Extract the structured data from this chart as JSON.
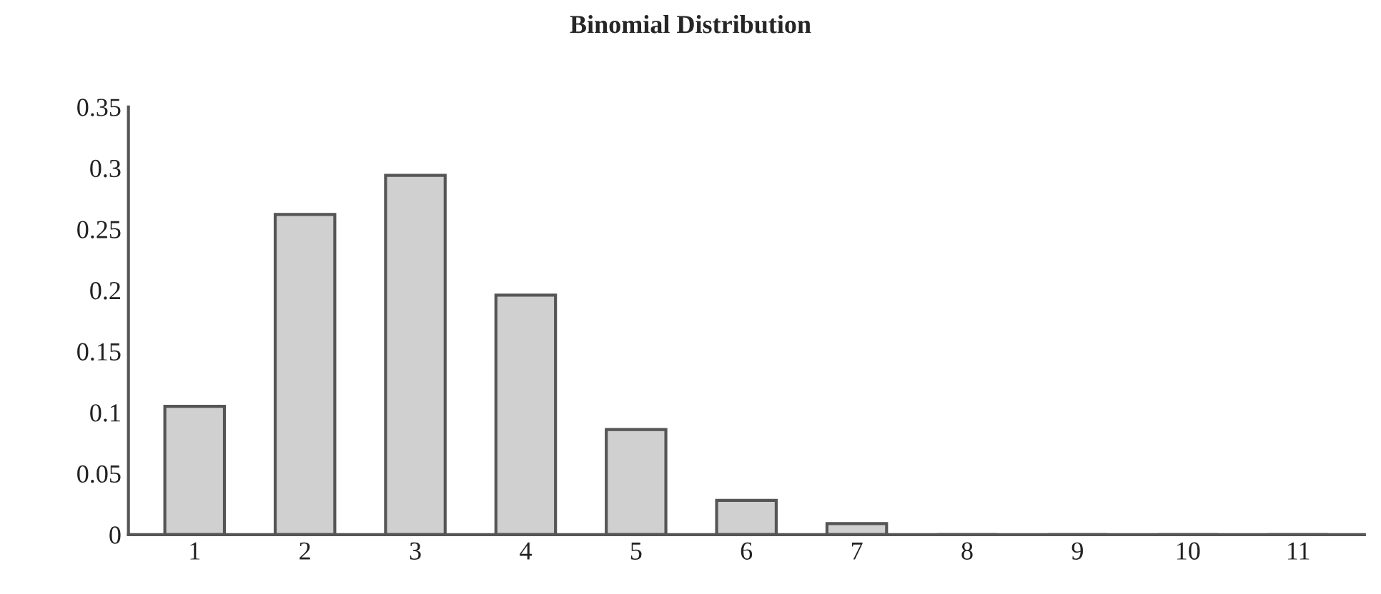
{
  "chart_data": {
    "type": "bar",
    "title": "Binomial Distribution",
    "categories": [
      "1",
      "2",
      "3",
      "4",
      "5",
      "6",
      "7",
      "8",
      "9",
      "10",
      "11"
    ],
    "values": [
      0.105,
      0.262,
      0.294,
      0.196,
      0.086,
      0.028,
      0.009,
      0,
      0,
      0,
      0
    ],
    "color": "#d0d0d0",
    "ylim": [
      0,
      0.35
    ],
    "yticks": [
      0,
      0.05,
      0.1,
      0.15,
      0.2,
      0.25,
      0.3,
      0.35
    ],
    "grid": false,
    "legend": false
  }
}
